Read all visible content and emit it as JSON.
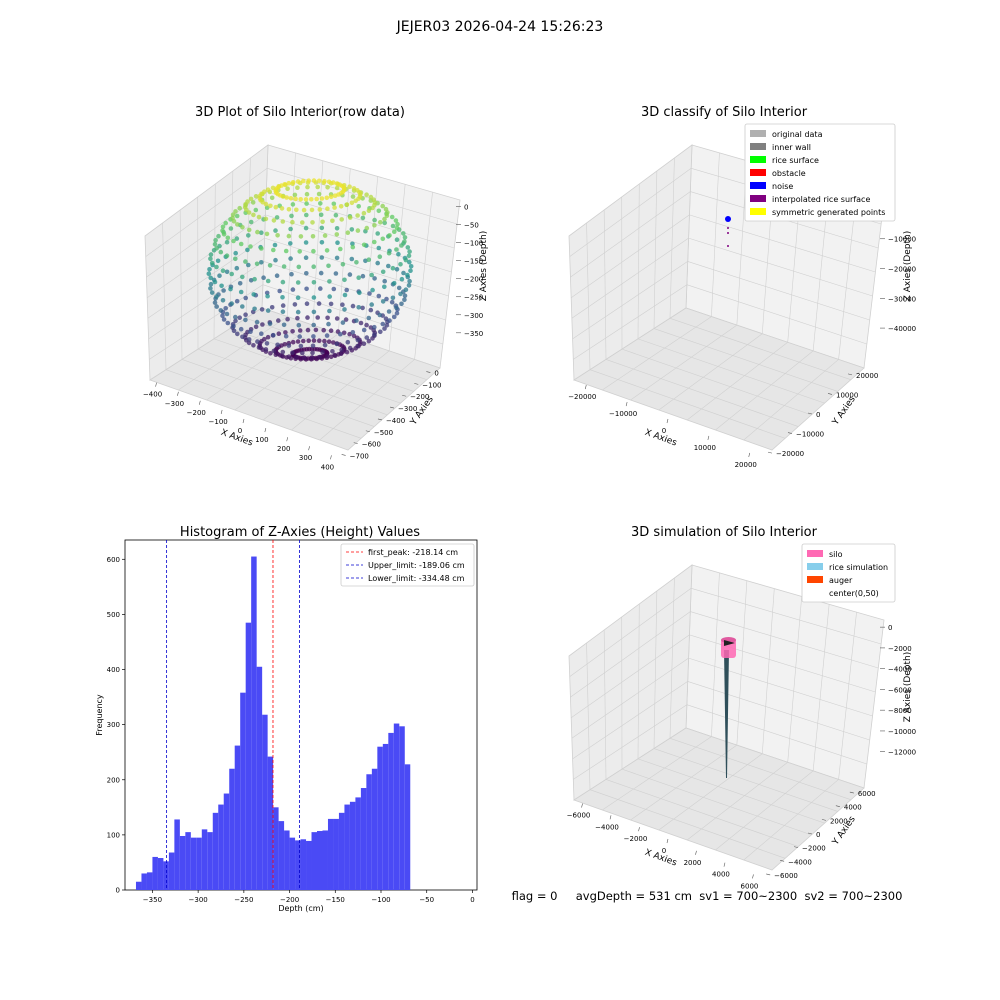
{
  "suptitle": "JEJER03 2026-04-24 15:26:23",
  "panel1": {
    "title": "3D Plot of Silo Interior(row data)",
    "xlabel": "X Axies",
    "ylabel": "Y Axies",
    "zlabel": "Z Axies (Depth)",
    "xticks": [
      "−400",
      "−300",
      "−200",
      "−100",
      "0",
      "100",
      "200",
      "300",
      "400"
    ],
    "yticks": [
      "0",
      "−100",
      "−200",
      "−300",
      "−400",
      "−500",
      "−600",
      "−700"
    ],
    "zticks": [
      "0",
      "−50",
      "−100",
      "−150",
      "−200",
      "−250",
      "−300",
      "−350"
    ]
  },
  "panel2": {
    "title": "3D classify of Silo Interior",
    "xlabel": "X Axies",
    "ylabel": "Y Axies",
    "zlabel": "Z Axies (Depth)",
    "xticks": [
      "−20000",
      "−10000",
      "0",
      "10000",
      "20000"
    ],
    "yticks": [
      "20000",
      "10000",
      "0",
      "−10000",
      "−20000"
    ],
    "zticks": [
      "0",
      "−10000",
      "−20000",
      "−30000",
      "−40000"
    ],
    "legend": [
      {
        "label": "original data",
        "color": "#b0b0b0"
      },
      {
        "label": "inner wall",
        "color": "#808080"
      },
      {
        "label": "rice surface",
        "color": "#00ff00"
      },
      {
        "label": "obstacle",
        "color": "#ff0000"
      },
      {
        "label": "noise",
        "color": "#0000ff"
      },
      {
        "label": "interpolated rice surface",
        "color": "#800080"
      },
      {
        "label": "symmetric generated points",
        "color": "#ffff00"
      }
    ]
  },
  "panel4": {
    "title": "3D simulation of Silo Interior",
    "xlabel": "X Axies",
    "ylabel": "Y Axies",
    "zlabel": "Z Axies (Depth)",
    "xticks": [
      "−6000",
      "−4000",
      "−2000",
      "0",
      "2000",
      "4000",
      "6000"
    ],
    "yticks": [
      "6000",
      "4000",
      "2000",
      "0",
      "−2000",
      "−4000",
      "−6000"
    ],
    "zticks": [
      "0",
      "−2000",
      "−4000",
      "−6000",
      "−8000",
      "−10000",
      "−12000"
    ],
    "legend": [
      {
        "label": "silo",
        "color": "#ff69b4"
      },
      {
        "label": "rice simulation",
        "color": "#87ceeb"
      },
      {
        "label": "auger",
        "color": "#ff4500"
      },
      {
        "label": "center(0,50)",
        "color": "none"
      }
    ]
  },
  "status_line": "flag = 0     avgDepth = 531 cm  sv1 = 700~2300  sv2 = 700~2300",
  "chart_data": {
    "type": "bar",
    "title": "Histogram of Z-Axies (Height) Values",
    "xlabel": "Depth (cm)",
    "ylabel": "Frequency",
    "xlim": [
      -380,
      5
    ],
    "ylim": [
      0,
      635
    ],
    "xticks": [
      -350,
      -300,
      -250,
      -200,
      -150,
      -100,
      -50,
      0
    ],
    "yticks": [
      0,
      100,
      200,
      300,
      400,
      500,
      600
    ],
    "bin_start": -368,
    "bin_width": 6,
    "values": [
      15,
      30,
      32,
      60,
      58,
      52,
      68,
      128,
      98,
      105,
      95,
      95,
      110,
      105,
      140,
      155,
      175,
      220,
      262,
      358,
      485,
      605,
      405,
      318,
      242,
      150,
      125,
      108,
      95,
      90,
      92,
      89,
      105,
      107,
      108,
      129,
      129,
      140,
      155,
      160,
      168,
      185,
      210,
      220,
      260,
      265,
      285,
      302,
      297,
      228
    ],
    "bar_color": "#4a4af5",
    "vlines": [
      {
        "label": "first_peak: -218.14 cm",
        "x": -218.14,
        "color": "#ff0000"
      },
      {
        "label": "Upper_limit: -189.06 cm",
        "x": -189.06,
        "color": "#0000cc"
      },
      {
        "label": "Lower_limit: -334.48 cm",
        "x": -334.48,
        "color": "#0000cc"
      }
    ],
    "legend_position": "top-right"
  }
}
